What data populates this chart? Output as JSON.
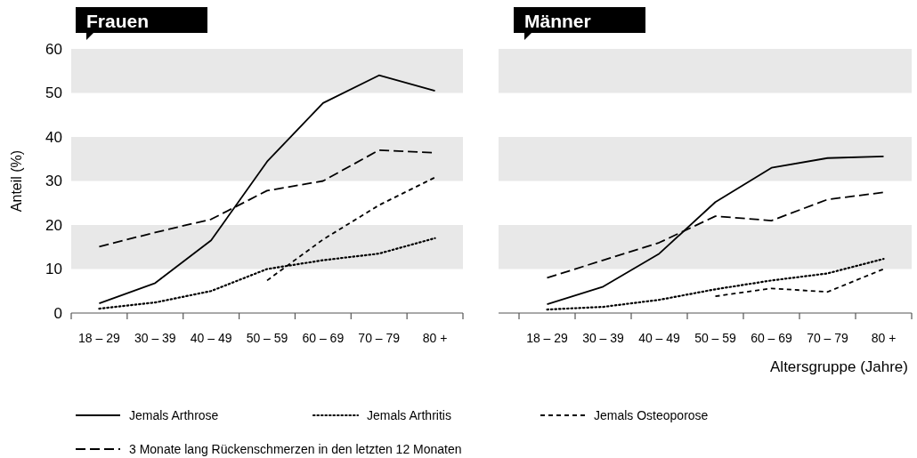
{
  "chart_data": [
    {
      "type": "line",
      "title": "Frauen",
      "ylabel": "Anteil (%)",
      "categories": [
        "18 – 29",
        "30 – 39",
        "40 – 49",
        "50 – 59",
        "60 – 69",
        "70 – 79",
        "80 +"
      ],
      "ylim": [
        0,
        60
      ],
      "yticks": [
        0,
        10,
        20,
        30,
        40,
        50,
        60
      ],
      "bands": [
        {
          "axis": "y",
          "from": 10,
          "to": 20,
          "color": "#e8e8e8"
        },
        {
          "axis": "y",
          "from": 30,
          "to": 40,
          "color": "#e8e8e8"
        },
        {
          "axis": "y",
          "from": 50,
          "to": 60,
          "color": "#e8e8e8"
        }
      ],
      "legend": "bottom",
      "series": [
        {
          "name": "Jemals Arthrose",
          "color": "#000000",
          "line_style": "solid",
          "values": [
            2.2,
            6.8,
            16.5,
            34.4,
            47.7,
            54,
            50.5
          ]
        },
        {
          "name": "Jemals Arthritis",
          "color": "#000000",
          "line_style": "dotted",
          "values": [
            1,
            2.4,
            5,
            10,
            12,
            13.5,
            17
          ]
        },
        {
          "name": "Jemals Osteoporose",
          "color": "#000000",
          "line_style": "dashed",
          "values": [
            null,
            null,
            null,
            7.4,
            16.7,
            24.5,
            30.8
          ]
        },
        {
          "name": "3 Monate lang Rückenschmerzen in den letzten 12 Monaten",
          "color": "#000000",
          "line_style": "dashed",
          "values": [
            15.1,
            18.3,
            21.3,
            27.8,
            30,
            37,
            36.4
          ]
        }
      ]
    },
    {
      "type": "line",
      "title": "Männer",
      "xlabel": "Altersgruppe (Jahre)",
      "categories": [
        "18 – 29",
        "30 – 39",
        "40 – 49",
        "50 – 59",
        "60 – 69",
        "70 – 79",
        "80 +"
      ],
      "ylim": [
        0,
        60
      ],
      "tick_labels": "x",
      "bands": [
        {
          "axis": "y",
          "from": 10,
          "to": 20,
          "color": "#e8e8e8"
        },
        {
          "axis": "y",
          "from": 30,
          "to": 40,
          "color": "#e8e8e8"
        },
        {
          "axis": "y",
          "from": 50,
          "to": 60,
          "color": "#e8e8e8"
        }
      ],
      "series": [
        {
          "color": "#000000",
          "line_style": "solid",
          "values": [
            2,
            6,
            13.5,
            25.2,
            33,
            35.2,
            35.6
          ]
        },
        {
          "color": "#000000",
          "line_style": "dotted",
          "values": [
            0.8,
            1.4,
            3,
            5.4,
            7.4,
            9,
            12.3
          ]
        },
        {
          "color": "#000000",
          "line_style": "dashed",
          "values": [
            null,
            null,
            null,
            3.8,
            5.6,
            4.8,
            10
          ]
        },
        {
          "color": "#000000",
          "line_style": "dashed",
          "values": [
            8,
            12,
            16,
            22,
            21,
            25.8,
            27.4
          ]
        }
      ]
    }
  ]
}
